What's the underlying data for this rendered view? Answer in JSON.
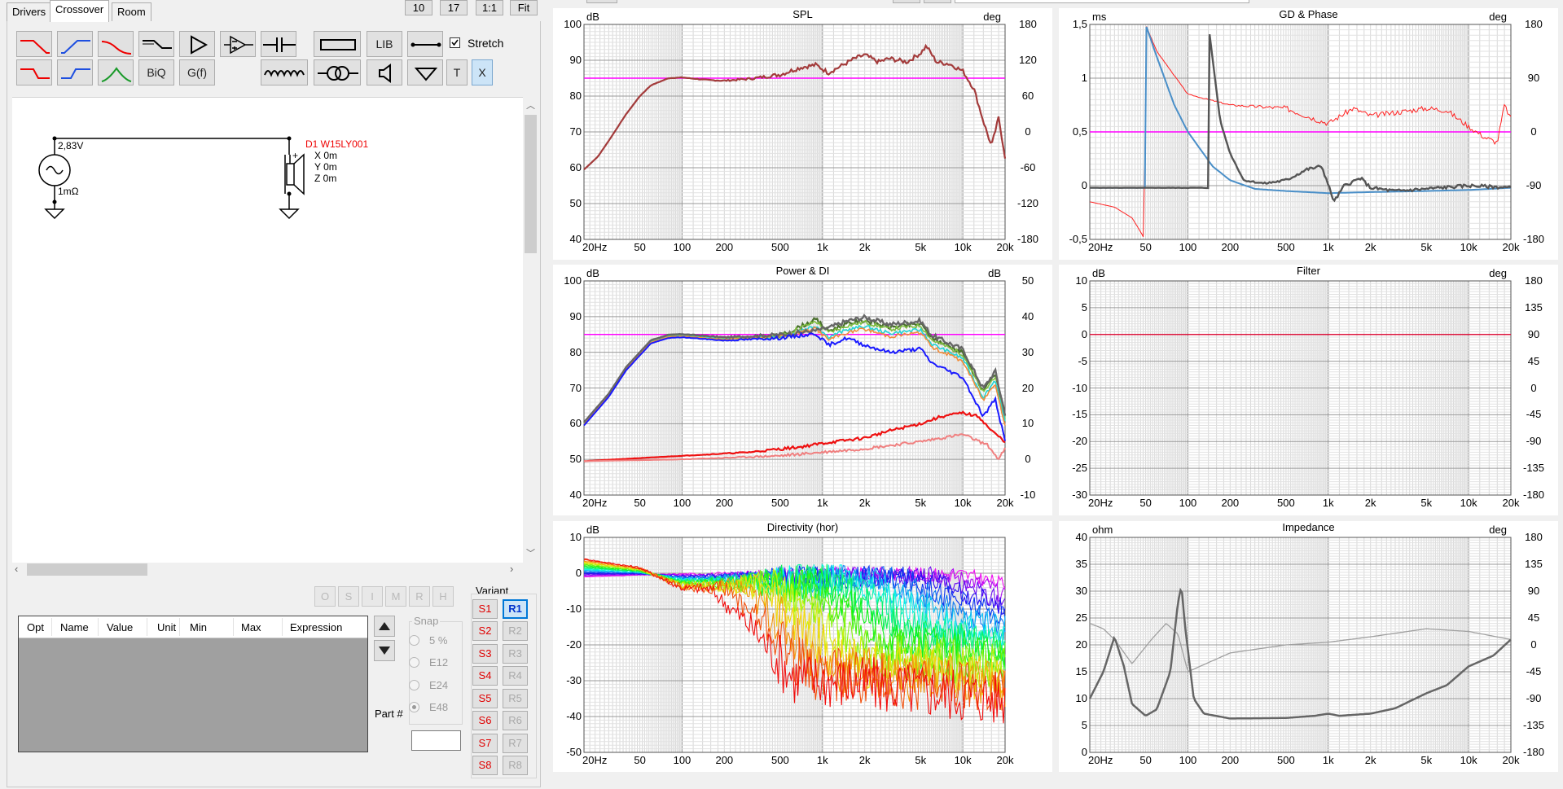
{
  "tabs": [
    "Drivers",
    "Crossover",
    "Room"
  ],
  "top_buttons": {
    "zoom_a": "10",
    "zoom_b": "17",
    "ratio": "1:1",
    "fit": "Fit"
  },
  "toolbar": {
    "lib": "LIB",
    "biq": "BiQ",
    "gf": "G(f)",
    "t": "T",
    "x": "X",
    "stretch": "Stretch",
    "stretch_checked": true
  },
  "schematic": {
    "source_voltage": "2,83V",
    "source_resistance": "1mΩ",
    "driver_name": "D1 W15LY001",
    "driver_x": "X 0m",
    "driver_y": "Y 0m",
    "driver_z": "Z 0m",
    "plus": "+",
    "minus": "-"
  },
  "opt_buttons": [
    "O",
    "S",
    "I",
    "M",
    "R",
    "H"
  ],
  "parts_table": {
    "columns": [
      "Opt",
      "Name",
      "Value",
      "Unit",
      "Min",
      "Max",
      "Expression"
    ]
  },
  "snap": {
    "title": "Snap",
    "options": [
      "5 %",
      "E12",
      "E24",
      "E48"
    ],
    "selected": "E48"
  },
  "part_number_label": "Part #",
  "variant": {
    "title": "Variant",
    "s": [
      "S1",
      "S2",
      "S3",
      "S4",
      "S5",
      "S6",
      "S7",
      "S8"
    ],
    "r": [
      "R1",
      "R2",
      "R3",
      "R4",
      "R5",
      "R6",
      "R7",
      "R8"
    ],
    "selected_r": "R1"
  },
  "colors": {
    "spl": "#a33b3b",
    "ref_line": "#ff00ff",
    "filter": "#dc143c",
    "blue": "#4a8fc8",
    "grey": "#555555",
    "red": "#ff2020"
  },
  "x_ticks": [
    "20Hz",
    "50",
    "100",
    "200",
    "500",
    "1k",
    "2k",
    "5k",
    "10k",
    "20k"
  ],
  "charts": {
    "spl": {
      "title": "SPL",
      "unit_left": "dB",
      "unit_right": "deg",
      "left_ticks": [
        "100",
        "90",
        "80",
        "70",
        "60",
        "50",
        "40"
      ],
      "right_ticks": [
        "180",
        "120",
        "60",
        "0",
        "-60",
        "-120",
        "-180"
      ]
    },
    "gd": {
      "title": "GD & Phase",
      "unit_left": "ms",
      "unit_right": "deg",
      "left_ticks": [
        "1,5",
        "1",
        "0,5",
        "0",
        "-0,5"
      ],
      "right_ticks": [
        "180",
        "90",
        "0",
        "-90",
        "-180"
      ]
    },
    "power": {
      "title": "Power & DI",
      "unit_left": "dB",
      "unit_right": "dB",
      "left_ticks": [
        "100",
        "90",
        "80",
        "70",
        "60",
        "50",
        "40"
      ],
      "right_ticks": [
        "50",
        "40",
        "30",
        "20",
        "10",
        "0",
        "-10"
      ]
    },
    "filter": {
      "title": "Filter",
      "unit_left": "dB",
      "unit_right": "deg",
      "left_ticks": [
        "10",
        "5",
        "0",
        "-5",
        "-10",
        "-15",
        "-20",
        "-25",
        "-30"
      ],
      "right_ticks": [
        "180",
        "135",
        "90",
        "45",
        "0",
        "-45",
        "-90",
        "-135",
        "-180"
      ]
    },
    "dir": {
      "title": "Directivity (hor)",
      "unit_left": "dB",
      "unit_right": "",
      "left_ticks": [
        "10",
        "0",
        "-10",
        "-20",
        "-30",
        "-40",
        "-50"
      ],
      "right_ticks": []
    },
    "imp": {
      "title": "Impedance",
      "unit_left": "ohm",
      "unit_right": "deg",
      "left_ticks": [
        "40",
        "35",
        "30",
        "25",
        "20",
        "15",
        "10",
        "5",
        "0"
      ],
      "right_ticks": [
        "180",
        "135",
        "90",
        "45",
        "0",
        "-45",
        "-90",
        "-135",
        "-180"
      ]
    }
  }
}
